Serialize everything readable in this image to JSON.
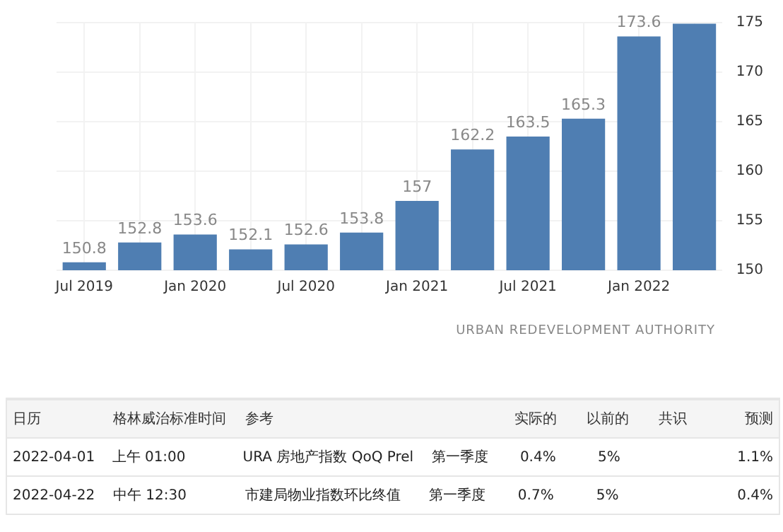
{
  "chart_data": [
    {
      "type": "bar",
      "categories": [
        "Jul 2019",
        null,
        "Jan 2020",
        null,
        "Jul 2020",
        null,
        "Jan 2021",
        null,
        "Jul 2021",
        null,
        "Jan 2022",
        null
      ],
      "values": [
        150.8,
        152.8,
        153.6,
        152.1,
        152.6,
        153.8,
        157,
        162.2,
        163.5,
        165.3,
        173.6,
        174.9
      ],
      "value_labels": [
        "150.8",
        "152.8",
        "153.6",
        "152.1",
        "152.6",
        "153.8",
        "157",
        "162.2",
        "163.5",
        "165.3",
        "173.6",
        null
      ],
      "color": "#4f7eb2",
      "ylim": [
        150,
        175
      ],
      "yticks": [
        150,
        155,
        160,
        165,
        170,
        175
      ],
      "grid": true,
      "legend": false,
      "annotations": [
        "URBAN REDEVELOPMENT AUTHORITY"
      ]
    },
    {
      "type": "other",
      "categories": [
        "日历",
        "格林威治标准时间",
        "参考",
        null,
        "实际的",
        "以前的",
        "共识",
        "预测"
      ],
      "cell_labels": [
        [
          "2022-04-01",
          "上午 01:00",
          "URA 房地产指数 QoQ Prel",
          "第一季度",
          "0.4%",
          "5%",
          null,
          "1.1%"
        ],
        [
          "2022-04-22",
          "中午 12:30",
          "市建局物业指数环比终值",
          "第一季度",
          "0.7%",
          "5%",
          null,
          "0.4%"
        ]
      ]
    }
  ]
}
